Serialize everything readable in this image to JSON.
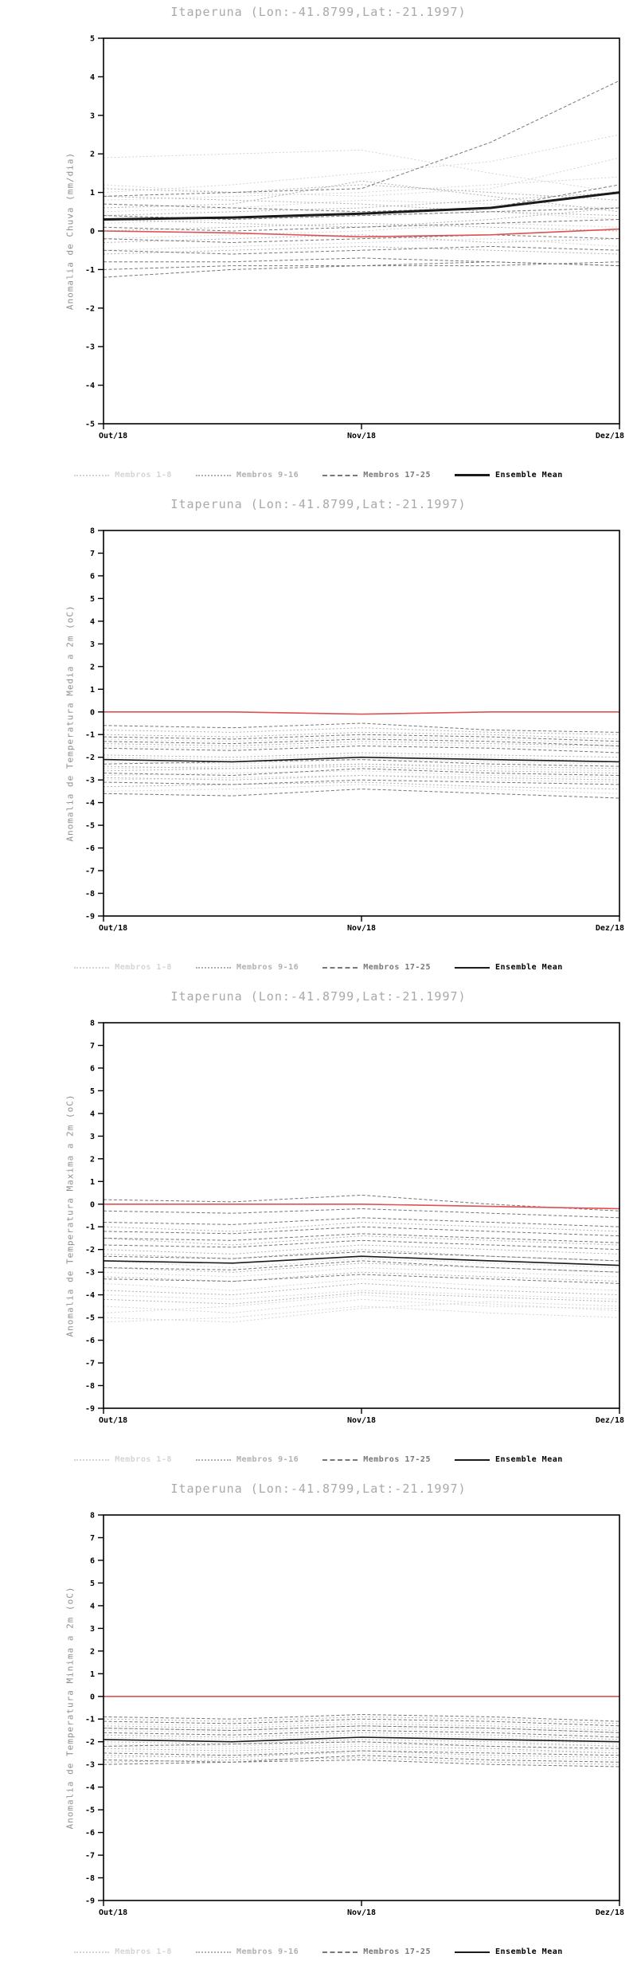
{
  "colors": {
    "title_text": "#a9a9a9",
    "axis_label_text": "#8f8f8f",
    "frame": "#000000",
    "members_1_8": "#d4d4d4",
    "members_9_16": "#b0b0b0",
    "members_17_25": "#777777",
    "ensemble_mean": "#1a1a1a",
    "reference_line": "#e05050"
  },
  "chart_data": [
    {
      "type": "line",
      "title": "Itaperuna (Lon:-41.8799,Lat:-21.1997)",
      "ylabel": "Anomalia de Chuva (mm/dia)",
      "xlabel": "",
      "ylim": [
        -5,
        5
      ],
      "yticks": [
        5,
        4,
        3,
        2,
        1,
        0,
        -1,
        -2,
        -3,
        -4,
        -5
      ],
      "x": [
        0,
        0.25,
        0.5,
        0.75,
        1
      ],
      "x_ticks": [
        {
          "pos": 0,
          "label": "Out/18"
        },
        {
          "pos": 0.5,
          "label": "Nov/18"
        },
        {
          "pos": 1,
          "label": "Dez/18"
        }
      ],
      "grid": false,
      "legend_position": "bottom",
      "mean_line_width": 3,
      "legend": [
        {
          "label": "Membros 1-8",
          "color": "#d4d4d4",
          "style": "dotted",
          "width": 2
        },
        {
          "label": "Membros 9-16",
          "color": "#b0b0b0",
          "style": "dotted",
          "width": 2
        },
        {
          "label": "Membros 17-25",
          "color": "#777777",
          "style": "dashed",
          "width": 2
        },
        {
          "label": "Ensemble Mean",
          "color": "#1a1a1a",
          "style": "solid",
          "width": 3,
          "label_color": "#000000"
        }
      ],
      "series": {
        "members_1_8": [
          [
            1.9,
            2.0,
            2.1,
            1.5,
            1.0
          ],
          [
            1.0,
            1.2,
            1.5,
            1.8,
            2.5
          ],
          [
            0.8,
            0.9,
            1.0,
            1.2,
            1.4
          ],
          [
            0.5,
            0.6,
            0.8,
            0.7,
            0.6
          ],
          [
            0.2,
            0.3,
            0.4,
            0.5,
            0.3
          ],
          [
            -0.2,
            -0.1,
            0.0,
            0.2,
            0.1
          ],
          [
            -0.5,
            -0.4,
            -0.3,
            -0.2,
            -0.4
          ],
          [
            1.2,
            1.0,
            0.9,
            1.1,
            1.9
          ]
        ],
        "members_9_16": [
          [
            1.1,
            1.0,
            1.2,
            1.0,
            0.8
          ],
          [
            0.6,
            0.7,
            1.3,
            0.9,
            0.5
          ],
          [
            0.3,
            0.2,
            0.1,
            0.3,
            0.6
          ],
          [
            0.0,
            0.1,
            0.2,
            0.1,
            0.0
          ],
          [
            -0.3,
            -0.2,
            -0.1,
            -0.3,
            -0.2
          ],
          [
            -0.6,
            -0.5,
            -0.4,
            -0.5,
            -0.6
          ],
          [
            0.9,
            0.8,
            0.7,
            0.5,
            0.4
          ],
          [
            0.4,
            0.5,
            0.6,
            0.8,
            1.0
          ]
        ],
        "members_17_25": [
          [
            0.9,
            1.0,
            1.1,
            2.3,
            3.9
          ],
          [
            0.7,
            0.6,
            0.5,
            0.6,
            1.2
          ],
          [
            0.4,
            0.3,
            0.4,
            0.5,
            0.6
          ],
          [
            0.1,
            0.0,
            0.1,
            0.2,
            0.3
          ],
          [
            -0.2,
            -0.3,
            -0.2,
            -0.1,
            -0.2
          ],
          [
            -0.5,
            -0.6,
            -0.5,
            -0.4,
            -0.5
          ],
          [
            -0.8,
            -0.8,
            -0.7,
            -0.8,
            -0.9
          ],
          [
            -1.0,
            -0.9,
            -0.9,
            -0.8,
            -0.9
          ],
          [
            -1.2,
            -1.0,
            -0.9,
            -0.9,
            -0.8
          ]
        ],
        "ensemble_mean": [
          0.3,
          0.35,
          0.45,
          0.6,
          1.0
        ],
        "reference": [
          0.0,
          -0.05,
          -0.15,
          -0.1,
          0.05
        ]
      }
    },
    {
      "type": "line",
      "title": "Itaperuna (Lon:-41.8799,Lat:-21.1997)",
      "ylabel": "Anomalia de Temperatura Media a 2m (oC)",
      "xlabel": "",
      "ylim": [
        -9,
        8
      ],
      "yticks": [
        8,
        7,
        6,
        5,
        4,
        3,
        2,
        1,
        0,
        -1,
        -2,
        -3,
        -4,
        -5,
        -6,
        -7,
        -8,
        -9
      ],
      "x": [
        0,
        0.25,
        0.5,
        0.75,
        1
      ],
      "x_ticks": [
        {
          "pos": 0,
          "label": "Out/18"
        },
        {
          "pos": 0.5,
          "label": "Nov/18"
        },
        {
          "pos": 1,
          "label": "Dez/18"
        }
      ],
      "grid": false,
      "legend_position": "bottom",
      "mean_line_width": 1.6,
      "legend": [
        {
          "label": "Membros 1-8",
          "color": "#d4d4d4",
          "style": "dotted",
          "width": 2
        },
        {
          "label": "Membros 9-16",
          "color": "#b0b0b0",
          "style": "dotted",
          "width": 2
        },
        {
          "label": "Membros 17-25",
          "color": "#777777",
          "style": "dashed",
          "width": 2
        },
        {
          "label": "Ensemble Mean",
          "color": "#1a1a1a",
          "style": "solid",
          "width": 2,
          "label_color": "#000000"
        }
      ],
      "series": {
        "members_1_8": [
          [
            -1.5,
            -1.6,
            -1.4,
            -1.5,
            -1.6
          ],
          [
            -2.0,
            -2.1,
            -1.9,
            -2.0,
            -2.2
          ],
          [
            -2.5,
            -2.4,
            -2.3,
            -2.5,
            -2.6
          ],
          [
            -3.0,
            -2.9,
            -2.8,
            -3.0,
            -3.1
          ],
          [
            -3.5,
            -3.4,
            -3.2,
            -3.4,
            -3.6
          ],
          [
            -1.2,
            -1.3,
            -1.1,
            -1.2,
            -1.4
          ],
          [
            -2.2,
            -2.3,
            -2.1,
            -2.2,
            -2.3
          ],
          [
            -2.8,
            -2.7,
            -2.6,
            -2.8,
            -2.9
          ]
        ],
        "members_9_16": [
          [
            -0.8,
            -0.9,
            -0.7,
            -0.9,
            -1.0
          ],
          [
            -1.4,
            -1.5,
            -1.3,
            -1.4,
            -1.5
          ],
          [
            -1.9,
            -2.0,
            -1.8,
            -1.9,
            -2.0
          ],
          [
            -2.4,
            -2.5,
            -2.3,
            -2.4,
            -2.5
          ],
          [
            -2.9,
            -3.0,
            -2.8,
            -2.9,
            -3.0
          ],
          [
            -3.3,
            -3.2,
            -3.1,
            -3.3,
            -3.4
          ],
          [
            -1.0,
            -1.1,
            -0.9,
            -1.0,
            -1.2
          ],
          [
            -2.6,
            -2.5,
            -2.4,
            -2.6,
            -2.7
          ]
        ],
        "members_17_25": [
          [
            -0.6,
            -0.7,
            -0.5,
            -0.8,
            -0.9
          ],
          [
            -1.1,
            -1.2,
            -1.0,
            -1.1,
            -1.3
          ],
          [
            -1.6,
            -1.7,
            -1.5,
            -1.6,
            -1.8
          ],
          [
            -2.1,
            -2.2,
            -2.0,
            -2.1,
            -2.2
          ],
          [
            -2.7,
            -2.8,
            -2.5,
            -2.7,
            -2.8
          ],
          [
            -3.1,
            -3.2,
            -3.0,
            -3.1,
            -3.2
          ],
          [
            -3.6,
            -3.7,
            -3.4,
            -3.6,
            -3.8
          ],
          [
            -1.3,
            -1.4,
            -1.2,
            -1.3,
            -1.5
          ],
          [
            -2.3,
            -2.2,
            -2.1,
            -2.3,
            -2.4
          ]
        ],
        "ensemble_mean": [
          -2.1,
          -2.2,
          -2.0,
          -2.1,
          -2.2
        ],
        "reference": [
          0.0,
          0.0,
          -0.1,
          0.0,
          0.0
        ]
      }
    },
    {
      "type": "line",
      "title": "Itaperuna (Lon:-41.8799,Lat:-21.1997)",
      "ylabel": "Anomalia de Temperatura Maxima a 2m (oC)",
      "xlabel": "",
      "ylim": [
        -9,
        8
      ],
      "yticks": [
        8,
        7,
        6,
        5,
        4,
        3,
        2,
        1,
        0,
        -1,
        -2,
        -3,
        -4,
        -5,
        -6,
        -7,
        -8,
        -9
      ],
      "x": [
        0,
        0.25,
        0.5,
        0.75,
        1
      ],
      "x_ticks": [
        {
          "pos": 0,
          "label": "Out/18"
        },
        {
          "pos": 0.5,
          "label": "Nov/18"
        },
        {
          "pos": 1,
          "label": "Dez/18"
        }
      ],
      "grid": false,
      "legend_position": "bottom",
      "mean_line_width": 1.6,
      "legend": [
        {
          "label": "Membros 1-8",
          "color": "#d4d4d4",
          "style": "dotted",
          "width": 2
        },
        {
          "label": "Membros 9-16",
          "color": "#b0b0b0",
          "style": "dotted",
          "width": 2
        },
        {
          "label": "Membros 17-25",
          "color": "#777777",
          "style": "dashed",
          "width": 2
        },
        {
          "label": "Ensemble Mean",
          "color": "#1a1a1a",
          "style": "solid",
          "width": 2,
          "label_color": "#000000"
        }
      ],
      "series": {
        "members_1_8": [
          [
            -4.5,
            -4.8,
            -4.2,
            -4.5,
            -4.6
          ],
          [
            -5.0,
            -5.2,
            -4.6,
            -4.3,
            -4.5
          ],
          [
            -4.0,
            -4.2,
            -3.8,
            -4.0,
            -4.2
          ],
          [
            -3.5,
            -3.8,
            -3.3,
            -3.6,
            -3.8
          ],
          [
            -4.8,
            -4.5,
            -4.0,
            -4.4,
            -4.7
          ],
          [
            -3.0,
            -3.2,
            -2.8,
            -3.0,
            -3.2
          ],
          [
            -2.5,
            -2.8,
            -2.4,
            -2.6,
            -2.8
          ],
          [
            -5.2,
            -5.0,
            -4.5,
            -4.8,
            -5.0
          ]
        ],
        "members_9_16": [
          [
            -1.5,
            -1.8,
            -1.4,
            -1.6,
            -1.8
          ],
          [
            -2.0,
            -2.2,
            -1.8,
            -2.0,
            -2.2
          ],
          [
            -2.8,
            -3.0,
            -2.6,
            -2.8,
            -3.0
          ],
          [
            -3.2,
            -3.4,
            -3.0,
            -3.2,
            -3.4
          ],
          [
            -3.8,
            -4.0,
            -3.5,
            -3.8,
            -4.0
          ],
          [
            -1.0,
            -1.2,
            -0.8,
            -1.0,
            -1.2
          ],
          [
            -2.2,
            -2.4,
            -2.0,
            -2.3,
            -2.5
          ],
          [
            -4.2,
            -4.4,
            -3.9,
            -4.1,
            -4.3
          ]
        ],
        "members_17_25": [
          [
            0.2,
            0.1,
            0.4,
            0.0,
            -0.3
          ],
          [
            -0.3,
            -0.4,
            -0.2,
            -0.4,
            -0.6
          ],
          [
            -0.8,
            -0.9,
            -0.6,
            -0.8,
            -1.0
          ],
          [
            -1.2,
            -1.3,
            -1.0,
            -1.2,
            -1.4
          ],
          [
            -1.8,
            -1.9,
            -1.6,
            -1.8,
            -2.0
          ],
          [
            -2.3,
            -2.4,
            -2.1,
            -2.3,
            -2.5
          ],
          [
            -2.8,
            -2.9,
            -2.5,
            -2.8,
            -3.0
          ],
          [
            -3.3,
            -3.4,
            -3.1,
            -3.3,
            -3.5
          ],
          [
            -1.5,
            -1.6,
            -1.3,
            -1.5,
            -1.7
          ]
        ],
        "ensemble_mean": [
          -2.5,
          -2.6,
          -2.3,
          -2.5,
          -2.7
        ],
        "reference": [
          0.0,
          0.0,
          0.0,
          -0.1,
          -0.2
        ]
      }
    },
    {
      "type": "line",
      "title": "Itaperuna (Lon:-41.8799,Lat:-21.1997)",
      "ylabel": "Anomalia de Temperatura Minima a 2m (oC)",
      "xlabel": "",
      "ylim": [
        -9,
        8
      ],
      "yticks": [
        8,
        7,
        6,
        5,
        4,
        3,
        2,
        1,
        0,
        -1,
        -2,
        -3,
        -4,
        -5,
        -6,
        -7,
        -8,
        -9
      ],
      "x": [
        0,
        0.25,
        0.5,
        0.75,
        1
      ],
      "x_ticks": [
        {
          "pos": 0,
          "label": "Out/18"
        },
        {
          "pos": 0.5,
          "label": "Nov/18"
        },
        {
          "pos": 1,
          "label": "Dez/18"
        }
      ],
      "grid": false,
      "legend_position": "bottom",
      "mean_line_width": 1.6,
      "legend": [
        {
          "label": "Membros 1-8",
          "color": "#d4d4d4",
          "style": "dotted",
          "width": 2
        },
        {
          "label": "Membros 9-16",
          "color": "#b0b0b0",
          "style": "dotted",
          "width": 2
        },
        {
          "label": "Membros 17-25",
          "color": "#777777",
          "style": "dashed",
          "width": 2
        },
        {
          "label": "Ensemble Mean",
          "color": "#1a1a1a",
          "style": "solid",
          "width": 2,
          "label_color": "#000000"
        }
      ],
      "series": {
        "members_1_8": [
          [
            -1.5,
            -1.6,
            -1.4,
            -1.5,
            -1.7
          ],
          [
            -1.8,
            -1.9,
            -1.7,
            -1.8,
            -2.0
          ],
          [
            -2.1,
            -2.2,
            -2.0,
            -2.1,
            -2.2
          ],
          [
            -2.4,
            -2.5,
            -2.3,
            -2.4,
            -2.5
          ],
          [
            -1.2,
            -1.3,
            -1.1,
            -1.2,
            -1.4
          ],
          [
            -2.7,
            -2.6,
            -2.5,
            -2.7,
            -2.8
          ],
          [
            -1.9,
            -2.0,
            -1.8,
            -1.9,
            -2.1
          ],
          [
            -2.2,
            -2.3,
            -2.1,
            -2.2,
            -2.4
          ]
        ],
        "members_9_16": [
          [
            -1.0,
            -1.1,
            -0.9,
            -1.0,
            -1.2
          ],
          [
            -1.4,
            -1.5,
            -1.3,
            -1.4,
            -1.6
          ],
          [
            -1.7,
            -1.8,
            -1.6,
            -1.7,
            -1.9
          ],
          [
            -2.0,
            -2.1,
            -1.9,
            -2.0,
            -2.2
          ],
          [
            -2.3,
            -2.4,
            -2.2,
            -2.3,
            -2.5
          ],
          [
            -2.6,
            -2.7,
            -2.4,
            -2.6,
            -2.7
          ],
          [
            -1.3,
            -1.4,
            -1.2,
            -1.3,
            -1.5
          ],
          [
            -2.9,
            -2.8,
            -2.7,
            -2.9,
            -3.0
          ]
        ],
        "members_17_25": [
          [
            -0.9,
            -1.0,
            -0.8,
            -0.9,
            -1.1
          ],
          [
            -1.1,
            -1.2,
            -1.0,
            -1.1,
            -1.3
          ],
          [
            -1.6,
            -1.7,
            -1.5,
            -1.6,
            -1.8
          ],
          [
            -1.9,
            -2.0,
            -1.8,
            -1.9,
            -2.0
          ],
          [
            -2.2,
            -2.1,
            -2.0,
            -2.2,
            -2.3
          ],
          [
            -2.5,
            -2.6,
            -2.4,
            -2.5,
            -2.6
          ],
          [
            -2.8,
            -2.9,
            -2.6,
            -2.8,
            -2.9
          ],
          [
            -1.4,
            -1.5,
            -1.3,
            -1.4,
            -1.6
          ],
          [
            -3.0,
            -2.9,
            -2.8,
            -3.0,
            -3.1
          ]
        ],
        "ensemble_mean": [
          -1.9,
          -2.0,
          -1.8,
          -1.9,
          -2.0
        ],
        "reference": [
          0.0,
          0.0,
          0.0,
          0.0,
          0.0
        ]
      }
    }
  ]
}
